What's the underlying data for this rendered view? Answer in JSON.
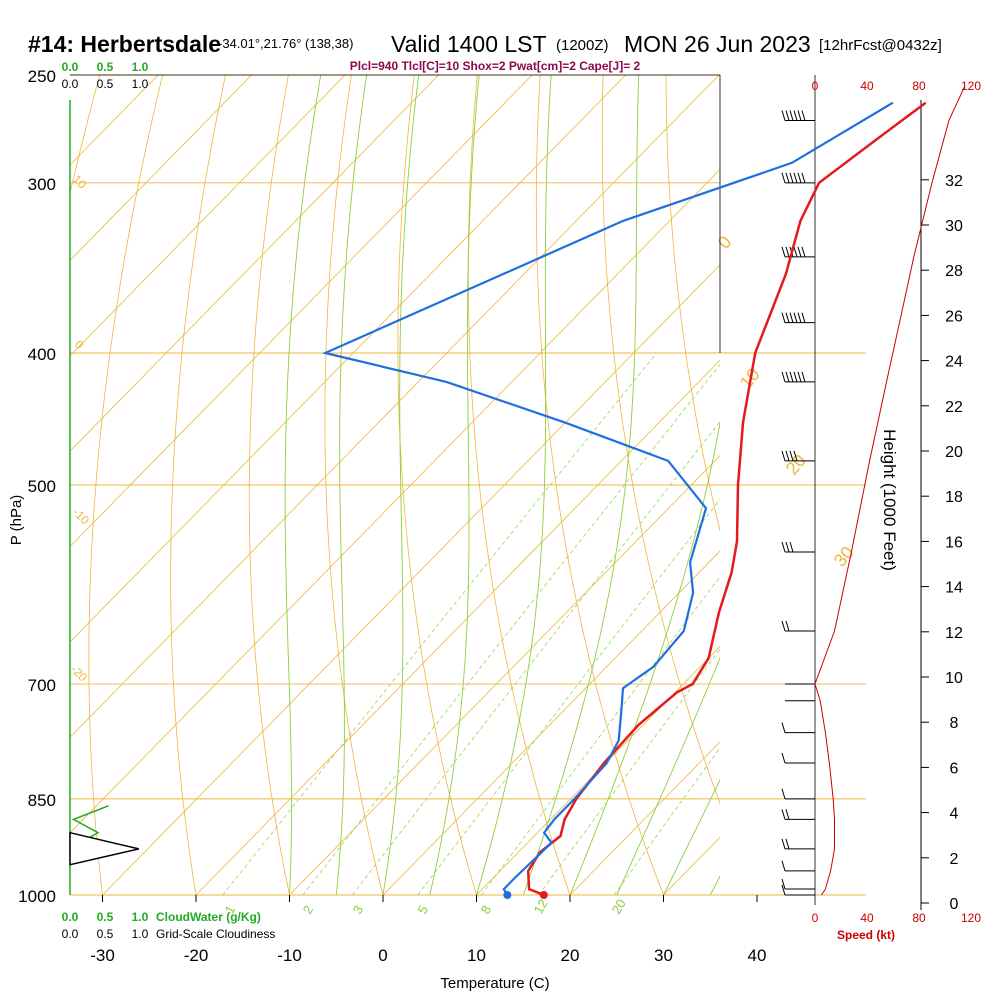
{
  "header": {
    "station": "#14: Herbertsdale",
    "coords": "-34.01°,21.76° (138,38)",
    "valid": "Valid 1400 LST",
    "zulu": "(1200Z)",
    "date": "MON 26 Jun 2023",
    "forecast": "[12hrFcst@0432z]",
    "indices": "Plcl=940 Tlcl[C]=10 Shox=2 Pwat[cm]=2 Cape[J]= 2"
  },
  "colors": {
    "temperature": "#e41a1c",
    "dewpoint": "#1f6fe0",
    "isobar": "#f0b43c",
    "isotherm": "#f0b43c",
    "dry_adiabat": "#f0b43c",
    "moist_adiabat": "#8ccf3c",
    "mixing_ratio": "#a8d860",
    "cloud_water": "#22aa22",
    "speed_profile": "#cc0000",
    "header_title": "#000000",
    "indices_text": "#8b0a50"
  },
  "chart_data": {
    "type": "line",
    "title": "#14: Herbertsdale",
    "xlabel": "Temperature (C)",
    "ylabel": "P (hPa)",
    "right_label": "Height (1000 Feet)",
    "pressure_ticks": [
      250,
      300,
      400,
      500,
      700,
      850,
      1000
    ],
    "temperature_ticks": [
      -30,
      -20,
      -10,
      0,
      10,
      20,
      30,
      40
    ],
    "height_ticks": [
      0,
      2,
      4,
      6,
      8,
      10,
      12,
      14,
      16,
      18,
      20,
      22,
      24,
      26,
      28,
      30,
      32
    ],
    "xlim": [
      -33.5,
      36
    ],
    "ylim": [
      1000,
      250
    ],
    "dry_adiabat_labels": [
      "10",
      "0",
      "-10",
      "-20"
    ],
    "moist_adiabat_labels": [
      "0",
      "10",
      "20",
      "30"
    ],
    "mixing_ratio_labels": [
      "1",
      "2",
      "3",
      "5",
      "8",
      "12",
      "20"
    ],
    "cloud_water_axis": {
      "label": "CloudWater (g/Kg)",
      "ticks": [
        "0.0",
        "0.5",
        "1.0"
      ]
    },
    "cloudiness_axis": {
      "label": "Grid-Scale Cloudiness",
      "ticks": [
        "0.0",
        "0.5",
        "1.0"
      ]
    },
    "speed_axis": {
      "label": "Speed (kt)",
      "ticks": [
        "0",
        "40",
        "80",
        "120"
      ]
    },
    "series": [
      {
        "key": "temperature",
        "points": [
          [
            17.2,
            1000
          ],
          [
            15.0,
            990
          ],
          [
            13.0,
            960
          ],
          [
            12.3,
            930
          ],
          [
            12.8,
            905
          ],
          [
            11.5,
            880
          ],
          [
            10.6,
            850
          ],
          [
            9.8,
            800
          ],
          [
            9.5,
            750
          ],
          [
            10.2,
            710
          ],
          [
            11.0,
            700
          ],
          [
            10.0,
            670
          ],
          [
            6.3,
            620
          ],
          [
            3.5,
            580
          ],
          [
            0.8,
            550
          ],
          [
            -5.0,
            500
          ],
          [
            -11.0,
            450
          ],
          [
            -17.0,
            400
          ],
          [
            -22.0,
            350
          ],
          [
            -26.0,
            320
          ],
          [
            -28.0,
            300
          ],
          [
            -26.5,
            280
          ],
          [
            -25.0,
            262
          ]
        ]
      },
      {
        "key": "dewpoint",
        "points": [
          [
            13.3,
            1000
          ],
          [
            12.3,
            990
          ],
          [
            12.3,
            970
          ],
          [
            12.5,
            930
          ],
          [
            12.5,
            915
          ],
          [
            10.7,
            900
          ],
          [
            10.4,
            880
          ],
          [
            10.4,
            850
          ],
          [
            10.1,
            800
          ],
          [
            9.0,
            770
          ],
          [
            6.0,
            730
          ],
          [
            4.0,
            705
          ],
          [
            5.0,
            680
          ],
          [
            4.5,
            640
          ],
          [
            1.5,
            600
          ],
          [
            -2.0,
            570
          ],
          [
            -6.0,
            520
          ],
          [
            -15.0,
            480
          ],
          [
            -30.0,
            450
          ],
          [
            -47.0,
            420
          ],
          [
            -63.0,
            400
          ],
          [
            -45.0,
            320
          ],
          [
            -33.0,
            290
          ],
          [
            -28.5,
            262
          ]
        ]
      }
    ],
    "cloud_water": [
      [
        0.55,
        860
      ],
      [
        0.05,
        880
      ],
      [
        0.4,
        900
      ],
      [
        0.0,
        925
      ]
    ],
    "cloudiness": [
      [
        0.0,
        900
      ],
      [
        0.55,
        925
      ],
      [
        0.0,
        950
      ]
    ],
    "wind_speed_kt": [
      [
        5,
        1000
      ],
      [
        8,
        990
      ],
      [
        12,
        960
      ],
      [
        15,
        925
      ],
      [
        15,
        880
      ],
      [
        14,
        850
      ],
      [
        11,
        800
      ],
      [
        8,
        760
      ],
      [
        4,
        720
      ],
      [
        0,
        700
      ],
      [
        15,
        640
      ],
      [
        28,
        560
      ],
      [
        42,
        480
      ],
      [
        55,
        420
      ],
      [
        65,
        380
      ],
      [
        76,
        340
      ],
      [
        90,
        300
      ],
      [
        103,
        270
      ],
      [
        115,
        255
      ]
    ]
  }
}
